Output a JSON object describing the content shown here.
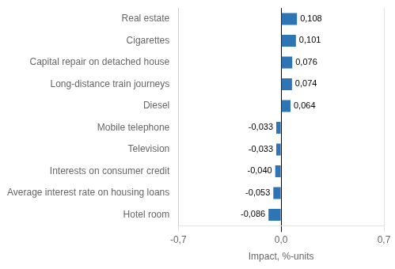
{
  "chart_data": {
    "type": "bar",
    "orientation": "horizontal",
    "categories": [
      "Hotel room",
      "Average interest rate on housing loans",
      "Interests on consumer credit",
      "Television",
      "Mobile telephone",
      "Diesel",
      "Long-distance train journeys",
      "Capital repair on detached house",
      "Cigarettes",
      "Real estate"
    ],
    "values": [
      -0.086,
      -0.053,
      -0.04,
      -0.033,
      -0.033,
      0.064,
      0.074,
      0.076,
      0.101,
      0.108
    ],
    "value_labels": [
      "-0,086",
      "-0,053",
      "-0,040",
      "-0,033",
      "-0,033",
      "0,064",
      "0,074",
      "0,076",
      "0,101",
      "0,108"
    ],
    "data_labels": true,
    "color": "#2e75b6",
    "xlabel": "Impact, %-units",
    "xlim": [
      -0.7,
      0.7
    ],
    "xticks": [
      {
        "value": -0.7,
        "label": "-0,7"
      },
      {
        "value": 0,
        "label": "0,0"
      },
      {
        "value": 0.7,
        "label": "0,7"
      }
    ],
    "grid": true
  }
}
